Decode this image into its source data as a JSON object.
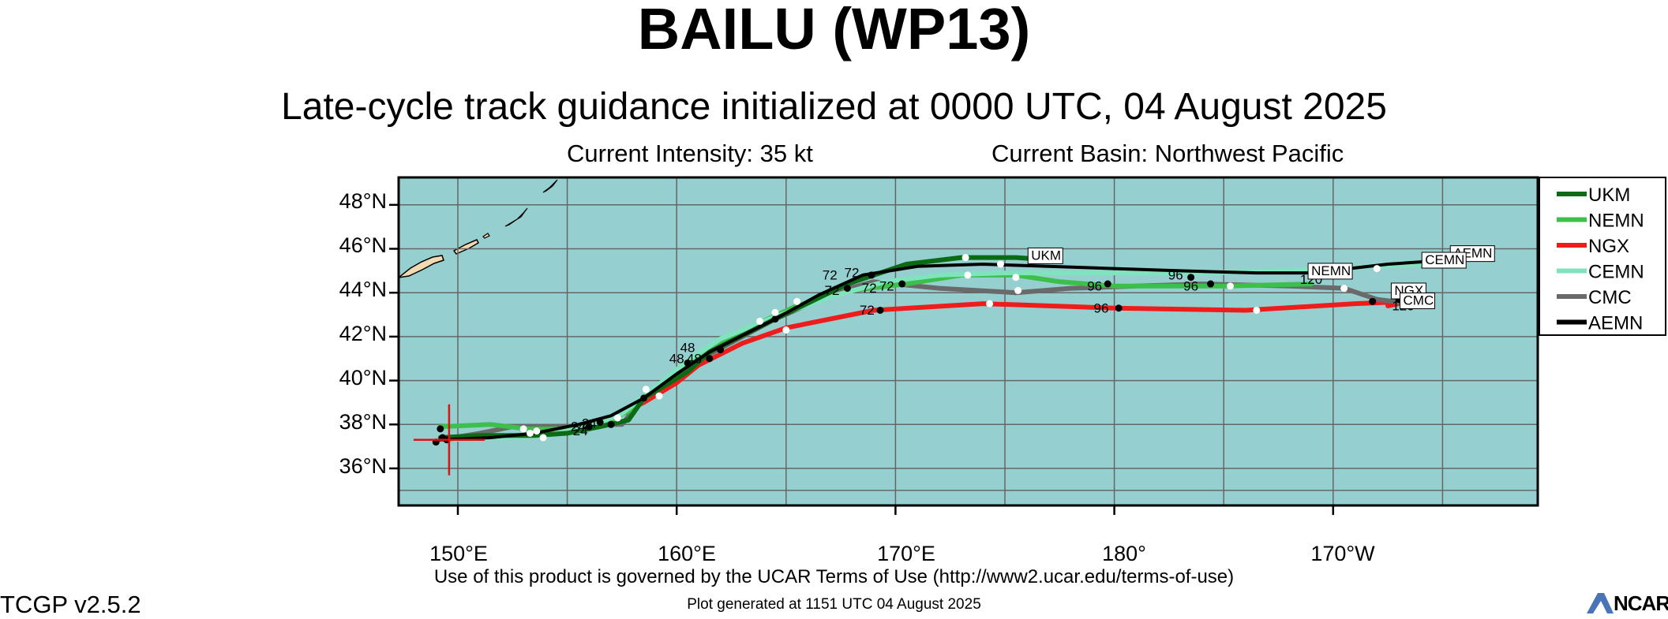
{
  "header": {
    "title": "BAILU (WP13)",
    "subtitle": "Late-cycle track guidance initialized at 0000 UTC, 04 August 2025",
    "intensity": "Current Intensity: 35 kt",
    "basin": "Current Basin: Northwest Pacific"
  },
  "footer": {
    "terms": "Use of this product is governed by the UCAR Terms of Use (http://www2.ucar.edu/terms-of-use)",
    "version": "TCGP v2.5.2",
    "generated": "Plot generated at 1151 UTC   04 August 2025",
    "logo_text": "NCAR"
  },
  "axes": {
    "lat_labels": [
      "48°N",
      "46°N",
      "44°N",
      "42°N",
      "40°N",
      "38°N",
      "36°N"
    ],
    "lon_labels": [
      "150°E",
      "160°E",
      "170°E",
      "180°",
      "170°W"
    ]
  },
  "colors": {
    "ocean": "#96cfd0",
    "land": "#f3d9b1",
    "grid": "#666666",
    "UKM": "#0a6b14",
    "NEMN": "#3cc04a",
    "NGX": "#ef1c1c",
    "CEMN": "#7fe3be",
    "CMC": "#6a6a6a",
    "AEMN": "#000000"
  },
  "legend": [
    "UKM",
    "NEMN",
    "NGX",
    "CEMN",
    "CMC",
    "AEMN"
  ],
  "chart_data": {
    "type": "map",
    "lon_range": [
      147,
      199
    ],
    "lat_range": [
      34,
      48.8
    ],
    "initial_position": [
      149.6,
      37.3
    ],
    "tracks": [
      {
        "name": "UKM",
        "points": [
          [
            149.2,
            37.4
          ],
          [
            151.0,
            37.5
          ],
          [
            153.5,
            37.5
          ],
          [
            155.0,
            37.6
          ],
          [
            156.5,
            37.9
          ],
          [
            157.8,
            38.2
          ],
          [
            158.5,
            39.2
          ],
          [
            160.5,
            40.4
          ],
          [
            161.5,
            41.3
          ],
          [
            164.5,
            42.8
          ],
          [
            167.8,
            44.4
          ],
          [
            170.5,
            45.3
          ],
          [
            173.0,
            45.6
          ],
          [
            175.5,
            45.6
          ],
          [
            177.0,
            45.5
          ]
        ]
      },
      {
        "name": "NEMN",
        "points": [
          [
            149.2,
            37.9
          ],
          [
            151.5,
            38.0
          ],
          [
            153.2,
            37.8
          ],
          [
            155.0,
            37.8
          ],
          [
            156.5,
            38.0
          ],
          [
            158.0,
            38.7
          ],
          [
            159.5,
            40.0
          ],
          [
            161.0,
            41.1
          ],
          [
            163.5,
            42.5
          ],
          [
            165.5,
            43.4
          ],
          [
            168.0,
            44.1
          ],
          [
            170.5,
            44.4
          ],
          [
            173.0,
            44.8
          ],
          [
            175.5,
            44.8
          ],
          [
            177.5,
            44.5
          ],
          [
            180.0,
            44.3
          ],
          [
            183.0,
            44.3
          ],
          [
            185.0,
            44.3
          ],
          [
            189.0,
            44.4
          ]
        ]
      },
      {
        "name": "NGX",
        "points": [
          [
            149.3,
            37.3
          ],
          [
            151.5,
            37.4
          ],
          [
            153.5,
            37.5
          ],
          [
            155.5,
            37.8
          ],
          [
            157.0,
            38.3
          ],
          [
            158.5,
            39.0
          ],
          [
            160.0,
            39.9
          ],
          [
            161.0,
            40.7
          ],
          [
            163.0,
            41.7
          ],
          [
            165.0,
            42.4
          ],
          [
            169.0,
            43.2
          ],
          [
            174.0,
            43.5
          ],
          [
            180.0,
            43.3
          ],
          [
            186.0,
            43.2
          ],
          [
            191.0,
            43.5
          ],
          [
            193.5,
            43.6
          ],
          [
            192.5,
            43.4
          ]
        ]
      },
      {
        "name": "CEMN",
        "points": [
          [
            149.2,
            37.3
          ],
          [
            152.0,
            37.4
          ],
          [
            154.0,
            37.5
          ],
          [
            156.0,
            37.9
          ],
          [
            157.5,
            38.5
          ],
          [
            158.8,
            39.5
          ],
          [
            160.5,
            40.9
          ],
          [
            162.0,
            41.9
          ],
          [
            164.5,
            42.9
          ],
          [
            167.0,
            43.8
          ],
          [
            169.5,
            44.5
          ],
          [
            172.0,
            44.8
          ],
          [
            175.0,
            44.9
          ],
          [
            178.0,
            44.9
          ],
          [
            181.0,
            44.9
          ],
          [
            184.0,
            44.9
          ],
          [
            188.0,
            45.0
          ],
          [
            192.0,
            45.2
          ],
          [
            194.0,
            45.3
          ]
        ]
      },
      {
        "name": "CMC",
        "points": [
          [
            149.2,
            37.3
          ],
          [
            151.0,
            37.6
          ],
          [
            152.5,
            37.9
          ],
          [
            155.0,
            37.9
          ],
          [
            156.5,
            38.0
          ],
          [
            157.5,
            38.0
          ],
          [
            158.3,
            39.0
          ],
          [
            159.5,
            40.0
          ],
          [
            161.5,
            41.2
          ],
          [
            164.5,
            42.8
          ],
          [
            167.5,
            44.1
          ],
          [
            169.0,
            44.5
          ],
          [
            172.0,
            44.2
          ],
          [
            175.5,
            44.0
          ],
          [
            178.0,
            44.2
          ],
          [
            181.0,
            44.3
          ],
          [
            184.0,
            44.4
          ],
          [
            188.0,
            44.3
          ],
          [
            190.5,
            44.2
          ],
          [
            192.0,
            43.7
          ],
          [
            193.5,
            43.5
          ]
        ]
      },
      {
        "name": "AEMN",
        "points": [
          [
            149.2,
            37.3
          ],
          [
            151.5,
            37.4
          ],
          [
            153.5,
            37.6
          ],
          [
            155.5,
            38.0
          ],
          [
            157.0,
            38.4
          ],
          [
            158.5,
            39.2
          ],
          [
            160.0,
            40.3
          ],
          [
            161.5,
            41.3
          ],
          [
            164.5,
            42.8
          ],
          [
            166.5,
            43.9
          ],
          [
            168.5,
            44.8
          ],
          [
            171.0,
            45.2
          ],
          [
            174.0,
            45.3
          ],
          [
            177.0,
            45.2
          ],
          [
            180.0,
            45.1
          ],
          [
            183.0,
            45.0
          ],
          [
            186.5,
            44.9
          ],
          [
            189.0,
            44.9
          ],
          [
            192.5,
            45.3
          ],
          [
            195.5,
            45.5
          ]
        ]
      }
    ],
    "end_labels": [
      {
        "text": "UKM",
        "lon": 176.2,
        "lat": 45.5
      },
      {
        "text": "NEMN",
        "lon": 189.0,
        "lat": 44.8
      },
      {
        "text": "AEMN",
        "lon": 195.5,
        "lat": 45.6
      },
      {
        "text": "CEMN",
        "lon": 194.2,
        "lat": 45.3
      },
      {
        "text": "NGX",
        "lon": 192.8,
        "lat": 43.9
      },
      {
        "text": "CMC",
        "lon": 193.2,
        "lat": 43.45
      }
    ],
    "hour_labels": [
      {
        "text": "24",
        "lon": 155.5,
        "lat": 37.7
      },
      {
        "text": "24",
        "lon": 156.0,
        "lat": 37.85
      },
      {
        "text": "24",
        "lon": 155.6,
        "lat": 37.5
      },
      {
        "text": "48",
        "lon": 160.5,
        "lat": 41.3
      },
      {
        "text": "48",
        "lon": 160.0,
        "lat": 40.8
      },
      {
        "text": "48",
        "lon": 160.8,
        "lat": 40.8
      },
      {
        "text": "72",
        "lon": 167.0,
        "lat": 44.6
      },
      {
        "text": "72",
        "lon": 168.0,
        "lat": 44.7
      },
      {
        "text": "72",
        "lon": 167.1,
        "lat": 43.9
      },
      {
        "text": "72",
        "lon": 168.8,
        "lat": 44.0
      },
      {
        "text": "72",
        "lon": 169.6,
        "lat": 44.1
      },
      {
        "text": "72",
        "lon": 168.7,
        "lat": 43.0
      },
      {
        "text": "96",
        "lon": 179.1,
        "lat": 44.1
      },
      {
        "text": "96",
        "lon": 182.8,
        "lat": 44.6
      },
      {
        "text": "96",
        "lon": 183.5,
        "lat": 44.1
      },
      {
        "text": "96",
        "lon": 179.4,
        "lat": 43.1
      },
      {
        "text": "120",
        "lon": 189.0,
        "lat": 44.4
      },
      {
        "text": "120",
        "lon": 194.5,
        "lat": 45.1
      },
      {
        "text": "120",
        "lon": 193.3,
        "lat": 43.7
      },
      {
        "text": "120",
        "lon": 193.2,
        "lat": 43.2
      }
    ],
    "black_dots": [
      [
        149.0,
        37.2
      ],
      [
        149.3,
        37.4
      ],
      [
        149.5,
        37.3
      ],
      [
        149.2,
        37.8
      ],
      [
        156.0,
        37.9
      ],
      [
        156.5,
        38.1
      ],
      [
        157.0,
        38.0
      ],
      [
        158.5,
        39.2
      ],
      [
        160.5,
        40.8
      ],
      [
        161.5,
        41.0
      ],
      [
        162.0,
        41.4
      ],
      [
        164.5,
        42.8
      ],
      [
        167.8,
        44.2
      ],
      [
        168.9,
        44.8
      ],
      [
        170.3,
        44.4
      ],
      [
        169.3,
        43.2
      ],
      [
        179.7,
        44.4
      ],
      [
        183.5,
        44.7
      ],
      [
        184.4,
        44.4
      ],
      [
        180.2,
        43.3
      ],
      [
        191.8,
        43.6
      ],
      [
        193.0,
        43.7
      ],
      [
        193.6,
        43.5
      ]
    ],
    "white_dots": [
      [
        153.0,
        37.8
      ],
      [
        153.3,
        37.6
      ],
      [
        153.6,
        37.7
      ],
      [
        153.9,
        37.4
      ],
      [
        157.3,
        38.3
      ],
      [
        158.6,
        39.6
      ],
      [
        159.2,
        39.3
      ],
      [
        163.8,
        42.7
      ],
      [
        164.5,
        43.1
      ],
      [
        165.5,
        43.6
      ],
      [
        165.0,
        42.3
      ],
      [
        173.3,
        44.8
      ],
      [
        173.2,
        45.6
      ],
      [
        174.8,
        45.3
      ],
      [
        175.5,
        44.7
      ],
      [
        175.6,
        44.1
      ],
      [
        174.3,
        43.5
      ],
      [
        185.3,
        44.3
      ],
      [
        186.5,
        43.2
      ],
      [
        190.5,
        44.2
      ],
      [
        192.0,
        45.1
      ]
    ]
  }
}
